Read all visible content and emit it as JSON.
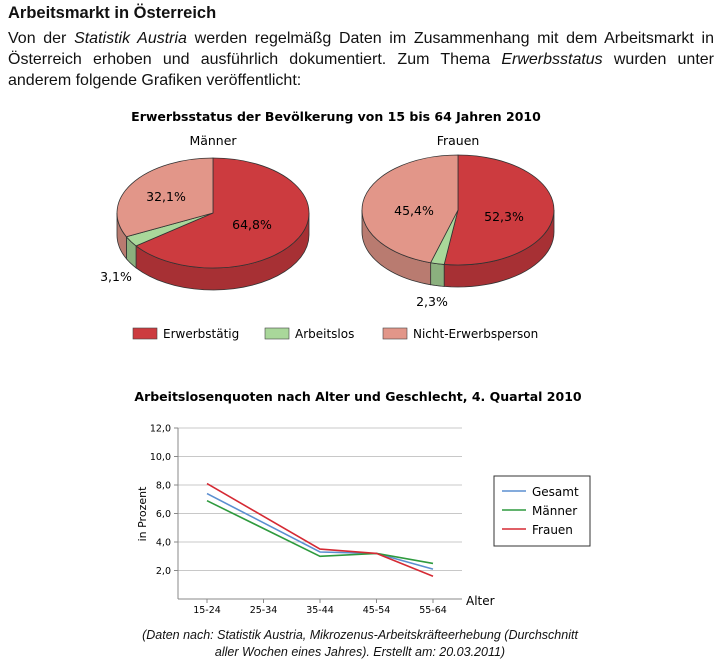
{
  "page": {
    "title": "Arbeitsmarkt in Österreich",
    "intro_1": "Von der ",
    "intro_em1": "Statistik Austria",
    "intro_2": " werden regelmäßg Daten im Zusammenhang mit dem Arbeitsmarkt in Österreich erhoben und ausführlich dokumentiert. Zum Thema ",
    "intro_em2": "Erwerbsstatus",
    "intro_3": " wurden unter anderem folgende Grafiken veröffentlicht:",
    "caption_line1": "(Daten nach: Statistik Austria, Mikrozenus-Arbeitskräfteerhebung (Durchschnitt",
    "caption_line2": "aller Wochen eines Jahres). Erstellt am: 20.03.2011)"
  },
  "colors": {
    "erwerbstaetig": "#cc3b3f",
    "arbeitslos": "#a9d79a",
    "nicht_erwerbsperson": "#e29689",
    "gesamt": "#5b8fd0",
    "maenner": "#2e9a3e",
    "frauen": "#d52a34"
  },
  "chart_data": [
    {
      "type": "pie",
      "title": "Erwerbsstatus der Bevölkerung von 15 bis 64 Jahren 2010",
      "legend": [
        "Erwerbstätig",
        "Arbeitslos",
        "Nicht-Erwerbsperson"
      ],
      "legend_position": "bottom",
      "pies": [
        {
          "name": "Männer",
          "slices": [
            {
              "label": "Erwerbstätig",
              "value": 64.8,
              "text": "64,8%"
            },
            {
              "label": "Arbeitslos",
              "value": 3.1,
              "text": "3,1%"
            },
            {
              "label": "Nicht-Erwerbsperson",
              "value": 32.1,
              "text": "32,1%"
            }
          ]
        },
        {
          "name": "Frauen",
          "slices": [
            {
              "label": "Erwerbstätig",
              "value": 52.3,
              "text": "52,3%"
            },
            {
              "label": "Arbeitslos",
              "value": 2.3,
              "text": "2,3%"
            },
            {
              "label": "Nicht-Erwerbsperson",
              "value": 45.4,
              "text": "45,4%"
            }
          ]
        }
      ]
    },
    {
      "type": "line",
      "title": "Arbeitslosenquoten nach Alter und Geschlecht, 4. Quartal 2010",
      "xlabel": "Alter",
      "ylabel": "in Prozent",
      "categories": [
        "15-24",
        "25-34",
        "35-44",
        "45-54",
        "55-64"
      ],
      "ylim": [
        0,
        12
      ],
      "yticks": [
        "2,0",
        "4,0",
        "6,0",
        "8,0",
        "10,0",
        "12,0"
      ],
      "legend_position": "right",
      "series": [
        {
          "name": "Gesamt",
          "values": [
            7.4,
            null,
            3.3,
            3.2,
            2.1
          ]
        },
        {
          "name": "Männer",
          "values": [
            6.9,
            null,
            3.0,
            3.2,
            2.5
          ]
        },
        {
          "name": "Frauen",
          "values": [
            8.1,
            null,
            3.5,
            3.2,
            1.6
          ]
        }
      ]
    }
  ]
}
